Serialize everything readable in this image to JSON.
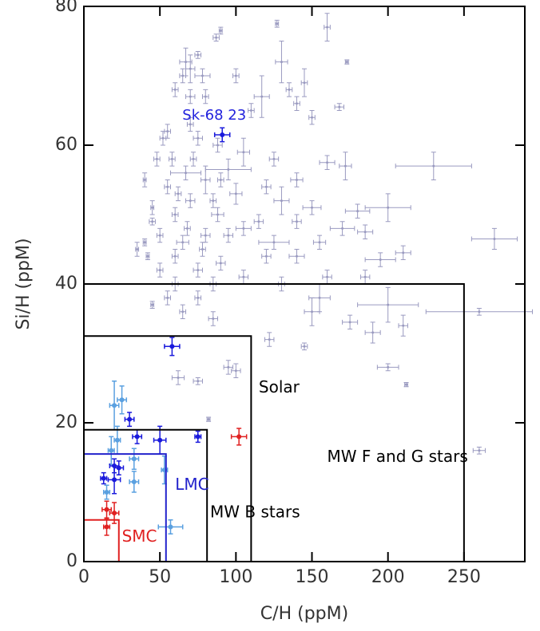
{
  "chart_data": {
    "type": "scatter",
    "xlabel": "C/H (ppM)",
    "ylabel": "Si/H (ppM)",
    "xlim": [
      0,
      290
    ],
    "ylim": [
      0,
      80
    ],
    "xticks": [
      0,
      50,
      100,
      150,
      200,
      250
    ],
    "yticks": [
      0,
      20,
      40,
      60,
      80
    ],
    "annotations": [
      {
        "text": "Sk-68 23",
        "x": 91,
        "y": 61.5,
        "color": "#2222dd"
      }
    ],
    "regions": [
      {
        "label": "MW F and G stars",
        "x": 250,
        "y": 40,
        "color": "#000000"
      },
      {
        "label": "Solar",
        "x": 110,
        "y": 32.5,
        "color": "#000000"
      },
      {
        "label": "MW B stars",
        "x": 81,
        "y": 19,
        "color": "#000000"
      },
      {
        "label": "LMC",
        "x": 54,
        "y": 15.5,
        "color": "#2222cc"
      },
      {
        "label": "SMC",
        "x": 23,
        "y": 6,
        "color": "#e02020"
      }
    ],
    "series": [
      {
        "color": "#9a9ac0",
        "x": [
          160,
          127,
          90,
          87,
          75,
          67,
          130,
          70,
          173,
          78,
          65,
          145,
          100,
          117,
          60,
          135,
          70,
          80,
          110,
          168,
          140,
          70,
          150,
          55,
          75,
          88,
          105,
          125,
          160,
          172,
          230,
          95,
          67,
          80,
          140,
          120,
          55,
          100,
          70,
          130,
          150,
          180,
          200,
          88,
          60,
          115,
          140,
          105,
          45,
          80,
          170,
          185,
          270,
          95,
          65,
          125,
          155,
          210,
          195,
          60,
          120,
          140,
          90,
          50,
          75,
          105,
          160,
          185,
          60,
          130,
          200,
          155,
          260,
          150,
          175,
          190,
          210,
          85,
          122,
          145,
          95,
          100,
          62,
          75,
          200,
          212,
          82,
          260,
          40,
          45,
          50,
          35,
          42,
          48,
          52,
          58,
          62,
          72,
          85,
          90,
          68,
          78,
          85,
          55,
          65,
          75,
          45,
          40
        ],
        "values": [
          77,
          77.5,
          76.5,
          75.5,
          73,
          72,
          72,
          71,
          72,
          70,
          70,
          69,
          70,
          67,
          68,
          68,
          67,
          67,
          65,
          65.5,
          66,
          63,
          64,
          62,
          61,
          60,
          59,
          58,
          57.5,
          57,
          57,
          56.5,
          56,
          55,
          55,
          54,
          54,
          53,
          52,
          52,
          51,
          50.5,
          51,
          50,
          50,
          49,
          49,
          48,
          49,
          47,
          48,
          47.5,
          46.5,
          47,
          46,
          46,
          46,
          44.5,
          43.5,
          44,
          44,
          44,
          43,
          42,
          42,
          41,
          41,
          41,
          40,
          40,
          37,
          38,
          36,
          36,
          34.5,
          33,
          34,
          35,
          32,
          31,
          28,
          27.5,
          26.5,
          26,
          28,
          25.5,
          20.5,
          16,
          55,
          51,
          47,
          45,
          44,
          58,
          61,
          58,
          53,
          58,
          52,
          55,
          48,
          45,
          40,
          38,
          36,
          38,
          37,
          46
        ],
        "xerr": [
          2,
          1,
          1,
          2,
          2,
          4,
          4,
          3,
          1,
          5,
          2,
          2,
          2,
          5,
          2,
          2,
          3,
          2,
          2,
          3,
          2,
          2,
          2,
          2,
          3,
          3,
          4,
          3,
          5,
          4,
          25,
          15,
          10,
          3,
          4,
          3,
          2,
          4,
          3,
          5,
          6,
          8,
          15,
          4,
          2,
          3,
          3,
          5,
          2,
          3,
          8,
          5,
          15,
          3,
          4,
          10,
          4,
          5,
          10,
          2,
          3,
          5,
          3,
          2,
          3,
          3,
          3,
          3,
          2,
          2,
          20,
          7,
          35,
          5,
          5,
          5,
          3,
          3,
          3,
          2,
          3,
          3,
          4,
          3,
          7,
          1,
          1,
          4,
          1,
          1,
          2,
          1,
          1,
          2,
          2,
          2,
          2,
          2,
          2,
          2,
          2,
          2,
          2,
          2,
          2,
          2,
          1,
          1
        ],
        "yerr": [
          2,
          0.5,
          0.5,
          0.5,
          0.5,
          2,
          3,
          2,
          0.3,
          1,
          1,
          2,
          1,
          3,
          1,
          1,
          1,
          1,
          1,
          0.5,
          1,
          1,
          1,
          1,
          1,
          1,
          2,
          1,
          1,
          2,
          2,
          1.5,
          1,
          2,
          1,
          1,
          1,
          1.5,
          1,
          2,
          1,
          1,
          2,
          1,
          1,
          1,
          1,
          1,
          0.5,
          1,
          1,
          1,
          1.5,
          1,
          1,
          1,
          1,
          1,
          1,
          1,
          1,
          1,
          1,
          1,
          1,
          1,
          1,
          1,
          1,
          1,
          2.5,
          2,
          0.5,
          2,
          1,
          1.5,
          1.5,
          1,
          1,
          0.5,
          1,
          1,
          1,
          0.5,
          0.5,
          0.3,
          0.3,
          0.5,
          1,
          1,
          1,
          1,
          0.5,
          1,
          1,
          1,
          1,
          1,
          1,
          1,
          1,
          1,
          1,
          1,
          1,
          1,
          0.5,
          0.5
        ]
      },
      {
        "color": "#5aa0e0",
        "x": [
          20,
          25,
          22,
          18,
          33,
          53,
          33,
          15,
          57
        ],
        "values": [
          22.5,
          23.3,
          17.5,
          16,
          14.8,
          13.2,
          11.5,
          10,
          5
        ],
        "xerr": [
          3,
          3,
          2,
          2,
          3,
          2,
          3,
          2,
          8
        ],
        "yerr": [
          3.5,
          2,
          2,
          2,
          1.5,
          2,
          1.5,
          1,
          1
        ]
      },
      {
        "color": "#1a1adc",
        "x": [
          91,
          58,
          30,
          35,
          50,
          75,
          20,
          23,
          13,
          20
        ],
        "values": [
          61.5,
          31,
          20.5,
          18,
          17.5,
          18,
          13.8,
          13.5,
          12,
          11.8
        ],
        "xerr": [
          5,
          5,
          3,
          3,
          4,
          2,
          3,
          3,
          2,
          4
        ],
        "yerr": [
          1,
          1.3,
          1,
          1,
          2,
          0.8,
          1,
          1,
          0.8,
          2
        ]
      },
      {
        "color": "#e02020",
        "x": [
          102,
          15,
          20,
          15
        ],
        "values": [
          18,
          7.5,
          7,
          5
        ],
        "xerr": [
          5,
          3,
          3,
          2
        ],
        "yerr": [
          1.2,
          1.2,
          1.5,
          1.2
        ]
      }
    ]
  }
}
